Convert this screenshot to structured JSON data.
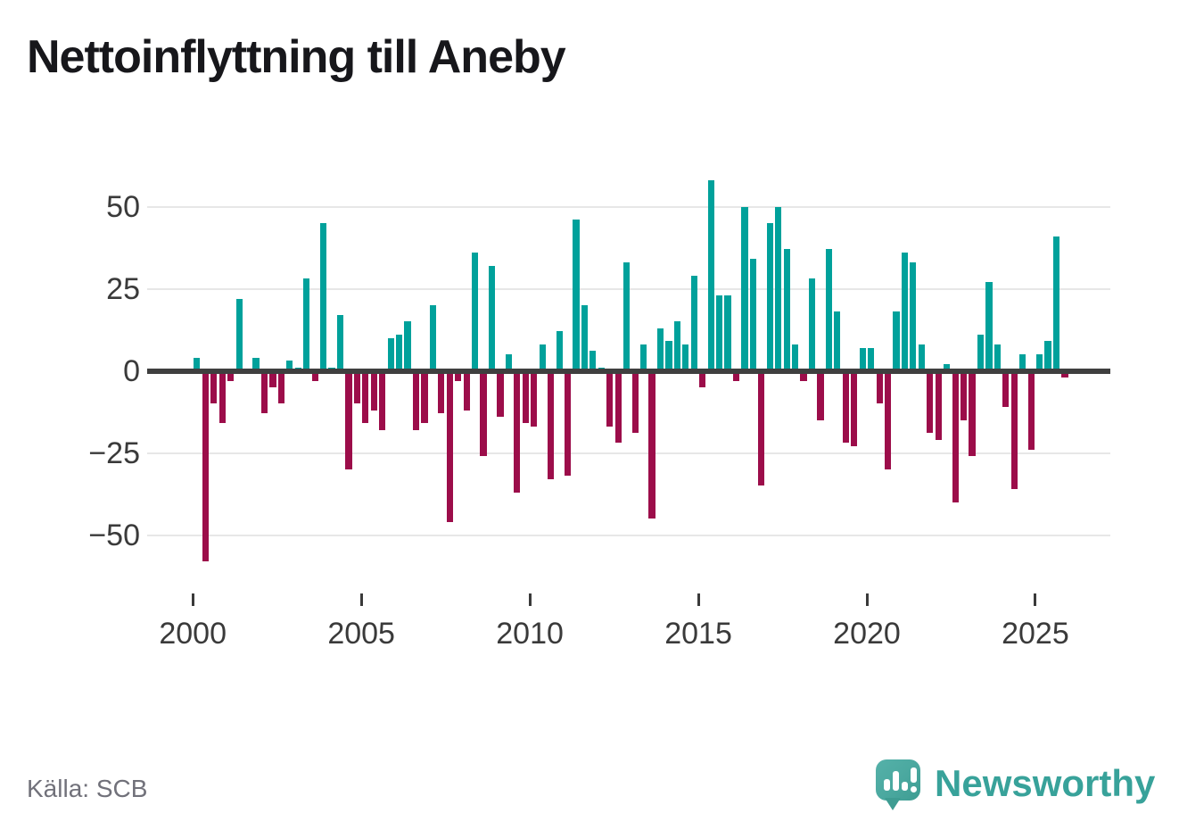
{
  "title": "Nettoinflyttning till Aneby",
  "source": "Källa: SCB",
  "branding": {
    "wordmark": "Newsworthy",
    "logo_icon": "speech-bubble-bar-chart-exclamation-icon"
  },
  "colors": {
    "positive_bar": "#00a19b",
    "negative_bar": "#9c0d4a",
    "zero_line": "#3f3f3f",
    "gridline": "#e7e7e7",
    "axis_text": "#3a3a3a",
    "title_text": "#17171b",
    "source_text": "#71717a",
    "brand_teal": "#38a29a",
    "logo_background": "#4aa89f"
  },
  "chart_data": {
    "type": "bar",
    "title": "Nettoinflyttning till Aneby",
    "frequency": "quarterly",
    "start_period": "2000 Q1",
    "end_period": "2025 Q4",
    "values": [
      4,
      -58,
      -10,
      -16,
      -3,
      22,
      0,
      4,
      -13,
      -5,
      -10,
      3,
      1,
      28,
      -3,
      45,
      1,
      17,
      -30,
      -10,
      -16,
      -12,
      -18,
      10,
      11,
      15,
      -18,
      -16,
      20,
      -13,
      -46,
      -3,
      -12,
      36,
      -26,
      32,
      -14,
      5,
      -37,
      -16,
      -17,
      8,
      -33,
      12,
      -32,
      46,
      20,
      6,
      1,
      -17,
      -22,
      33,
      -19,
      8,
      -45,
      13,
      9,
      15,
      8,
      29,
      -5,
      58,
      23,
      23,
      -3,
      50,
      34,
      -35,
      45,
      50,
      37,
      8,
      -3,
      28,
      -15,
      37,
      18,
      -22,
      -23,
      7,
      7,
      -10,
      -30,
      18,
      36,
      33,
      8,
      -19,
      -21,
      2,
      -40,
      -15,
      -26,
      11,
      27,
      8,
      -11,
      -36,
      5,
      -24,
      5,
      9,
      41,
      -2
    ],
    "x_tick_years": [
      2000,
      2005,
      2010,
      2015,
      2020,
      2025
    ],
    "x_tick_labels": [
      "2000",
      "2005",
      "2010",
      "2015",
      "2020",
      "2025"
    ],
    "y_ticks": [
      50,
      25,
      0,
      -25,
      -50
    ],
    "y_tick_labels": [
      "50",
      "25",
      "0",
      "−25",
      "−50"
    ],
    "ylim": [
      -62,
      62
    ],
    "grid": "horizontal",
    "legend": "none"
  }
}
